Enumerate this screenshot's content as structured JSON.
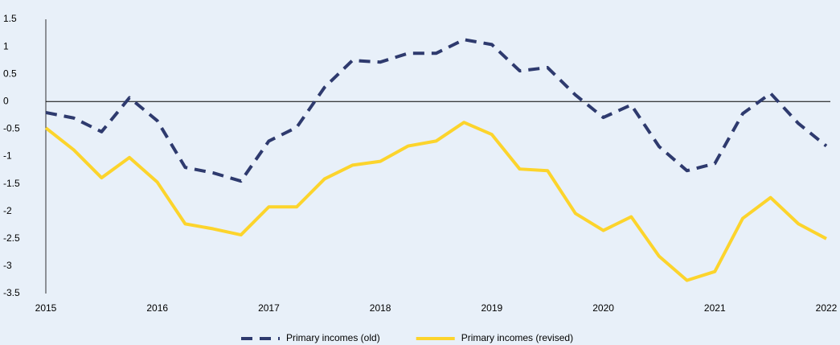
{
  "chart_data": {
    "type": "line",
    "x": [
      2015,
      2015.25,
      2015.5,
      2015.75,
      2016,
      2016.25,
      2016.5,
      2016.75,
      2017,
      2017.25,
      2017.5,
      2017.75,
      2018,
      2018.25,
      2018.5,
      2018.75,
      2019,
      2019.25,
      2019.5,
      2019.75,
      2020,
      2020.25,
      2020.5,
      2020.75,
      2021,
      2021.25,
      2021.5,
      2021.75,
      2022
    ],
    "series": [
      {
        "name": "Primary incomes (old)",
        "color": "#2e3a6e",
        "dashed": true,
        "values": [
          -0.2,
          -0.3,
          -0.55,
          0.07,
          -0.35,
          -1.2,
          -1.3,
          -1.45,
          -0.72,
          -0.47,
          0.26,
          0.75,
          0.72,
          0.88,
          0.88,
          1.13,
          1.04,
          0.56,
          0.62,
          0.12,
          -0.29,
          -0.06,
          -0.82,
          -1.26,
          -1.13,
          -0.22,
          0.15,
          -0.4,
          -0.81
        ]
      },
      {
        "name": "Primary incomes (revised)",
        "color": "#fcd42c",
        "dashed": false,
        "values": [
          -0.48,
          -0.88,
          -1.39,
          -1.02,
          -1.47,
          -2.23,
          -2.32,
          -2.43,
          -1.92,
          -1.92,
          -1.41,
          -1.16,
          -1.09,
          -0.81,
          -0.72,
          -0.38,
          -0.6,
          -1.23,
          -1.26,
          -2.04,
          -2.35,
          -2.1,
          -2.82,
          -3.26,
          -3.1,
          -2.13,
          -1.75,
          -2.23,
          -2.5
        ]
      }
    ],
    "xlim": [
      2015,
      2022
    ],
    "xticks": [
      2015,
      2016,
      2017,
      2018,
      2019,
      2020,
      2021,
      2022
    ],
    "ylim": [
      -3.5,
      1.5
    ],
    "yticks": [
      1.5,
      1,
      0.5,
      0,
      -0.5,
      -1,
      -1.5,
      -2,
      -2.5,
      -3,
      -3.5
    ],
    "legend": "bottom"
  }
}
